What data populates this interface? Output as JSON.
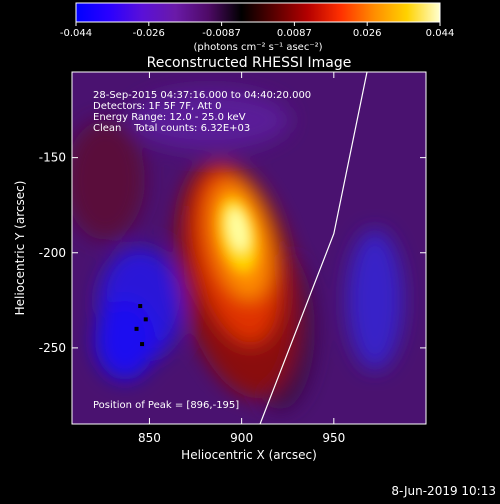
{
  "colorbar": {
    "colors": [
      "#0000ff",
      "#2a00ff",
      "#5a10d8",
      "#6a1aa8",
      "#4e0a66",
      "#000000",
      "#5a0000",
      "#b40000",
      "#ff3000",
      "#ff8c00",
      "#ffd200",
      "#ffffd0"
    ],
    "ticks": [
      "-0.044",
      "-0.026",
      "-0.0087",
      "0.0087",
      "0.026",
      "0.044"
    ],
    "unit_label": "(photons cm⁻² s⁻¹ asec⁻²)"
  },
  "chart_data": {
    "type": "heatmap",
    "title": "Reconstructed RHESSI Image",
    "xlabel": "Heliocentric X (arcsec)",
    "ylabel": "Heliocentric Y (arcsec)",
    "xlim": [
      808,
      1000
    ],
    "ylim": [
      -290,
      -105
    ],
    "x_ticks": [
      850,
      900,
      950
    ],
    "y_ticks": [
      -150,
      -200,
      -250
    ],
    "value_range": [
      -0.044,
      0.044
    ],
    "annotations": [
      "28-Sep-2015 04:37:16.000 to 04:40:20.000",
      "Detectors: 1F 5F 7F, Att 0",
      "Energy Range: 12.0 - 25.0 keV",
      "Clean    Total counts: 6.32E+03"
    ],
    "peak_label": "Position of Peak = [896,-195]",
    "peak": [
      896,
      -195
    ],
    "limb_line": [
      [
        910,
        -290
      ],
      [
        950,
        -190
      ],
      [
        968,
        -105
      ]
    ],
    "markers": [
      [
        845,
        -228
      ],
      [
        848,
        -235
      ],
      [
        843,
        -240
      ],
      [
        846,
        -248
      ]
    ]
  },
  "footer": {
    "date": "8-Jun-2019 10:13"
  }
}
